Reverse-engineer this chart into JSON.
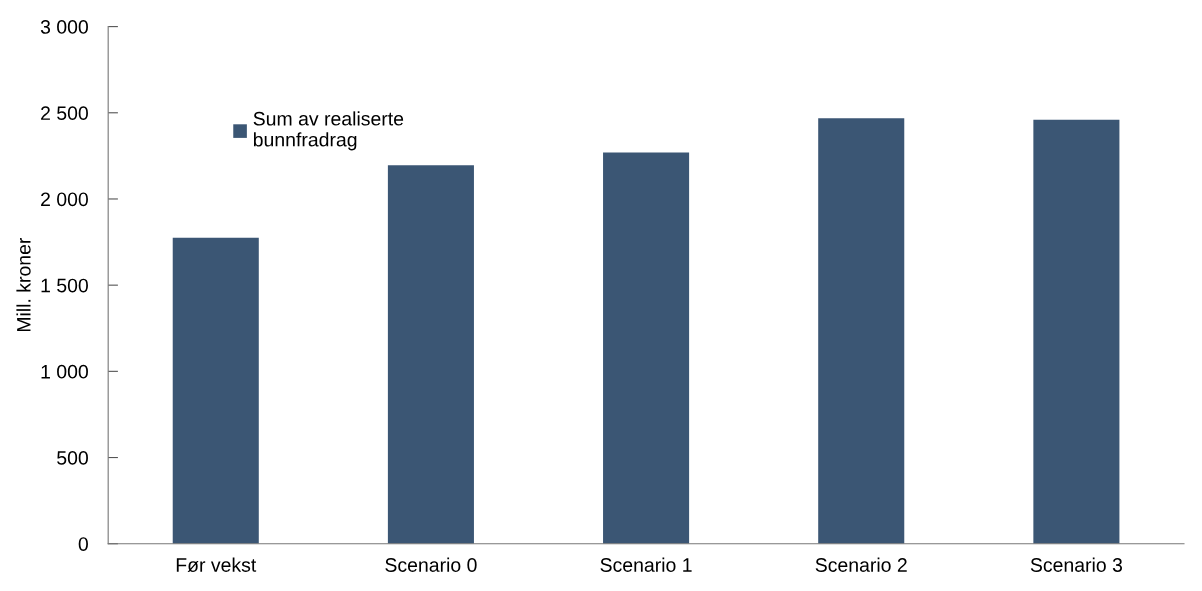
{
  "chart_data": {
    "type": "bar",
    "ylabel": "Mill. kroner",
    "categories": [
      "Før vekst",
      "Scenario 0",
      "Scenario 1",
      "Scenario 2",
      "Scenario 3"
    ],
    "series": [
      {
        "name": "Sum av realiserte\nbunnfradrag",
        "color": "#3b5674",
        "values": [
          1775,
          2196,
          2269,
          2469,
          2460
        ]
      }
    ],
    "ylim": [
      0,
      3000
    ],
    "yticks": [
      0,
      500,
      {
        "value": 1000,
        "label": "1 000"
      },
      {
        "value": 1500,
        "label": "1 500"
      },
      {
        "value": 2000,
        "label": "2 000"
      },
      {
        "value": 2500,
        "label": "2 500"
      },
      {
        "value": 3000,
        "label": "3 000"
      }
    ],
    "grid": false,
    "legend": "top left"
  }
}
